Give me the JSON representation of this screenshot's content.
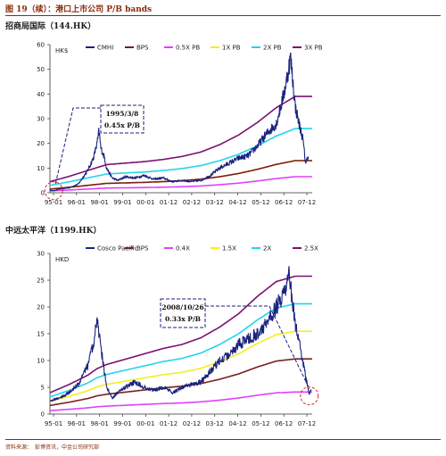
{
  "figure": {
    "title": "图 19（续）：港口上市公司 P/B bands",
    "source": "资料来源：　彭博资讯，中金公司研究部"
  },
  "chart_data": [
    {
      "type": "line",
      "panel_title": "招商局国际（144.HK）",
      "ylabel": "HK$",
      "ylim": [
        0,
        60
      ],
      "yticks": [
        "0",
        "10",
        "20",
        "30",
        "40",
        "50",
        "60"
      ],
      "xticks": [
        "95-01",
        "96-01",
        "98-01",
        "99-01",
        "00-01",
        "01-12",
        "02-12",
        "03-12",
        "04-12",
        "05-12",
        "06-12",
        "07-12"
      ],
      "legend": [
        "CMHI",
        "BPS",
        "0.5X PB",
        "1X PB",
        "2X PB",
        "3X PB"
      ],
      "colors": {
        "price": "#1a237e",
        "bps": "#7b1d1d",
        "pb05": "#e040fb",
        "pb1": "#f5ee1d",
        "pb2": "#22d3ee",
        "pb3": "#7b1170"
      },
      "x": [
        1995.0,
        1996.0,
        1997.0,
        1997.5,
        1998.0,
        1999.0,
        2000.0,
        2001.0,
        2002.0,
        2003.0,
        2004.0,
        2005.0,
        2006.0,
        2007.0,
        2008.0
      ],
      "bps": [
        1.5,
        2.2,
        3.0,
        3.4,
        3.8,
        4.0,
        4.2,
        4.5,
        4.9,
        5.5,
        6.5,
        7.8,
        9.5,
        11.5,
        13.0
      ],
      "price": [
        [
          1995.0,
          1.0
        ],
        [
          1995.2,
          0.8
        ],
        [
          1995.5,
          1.5
        ],
        [
          1996.0,
          2.0
        ],
        [
          1996.5,
          3.5
        ],
        [
          1997.0,
          9.0
        ],
        [
          1997.3,
          14.0
        ],
        [
          1997.5,
          20.0
        ],
        [
          1997.6,
          25.0
        ],
        [
          1997.7,
          18.0
        ],
        [
          1997.9,
          14.0
        ],
        [
          1998.0,
          10.0
        ],
        [
          1998.3,
          6.0
        ],
        [
          1998.6,
          5.0
        ],
        [
          1999.0,
          6.5
        ],
        [
          1999.5,
          6.0
        ],
        [
          2000.0,
          7.0
        ],
        [
          2000.5,
          5.5
        ],
        [
          2001.0,
          6.0
        ],
        [
          2001.5,
          4.5
        ],
        [
          2002.0,
          5.0
        ],
        [
          2002.5,
          4.5
        ],
        [
          2003.0,
          5.0
        ],
        [
          2003.5,
          7.0
        ],
        [
          2004.0,
          10.0
        ],
        [
          2004.5,
          12.0
        ],
        [
          2005.0,
          14.0
        ],
        [
          2005.5,
          15.0
        ],
        [
          2006.0,
          19.0
        ],
        [
          2006.5,
          24.0
        ],
        [
          2007.0,
          28.0
        ],
        [
          2007.4,
          40.0
        ],
        [
          2007.6,
          48.0
        ],
        [
          2007.75,
          55.0
        ],
        [
          2007.85,
          47.0
        ],
        [
          2008.0,
          35.0
        ],
        [
          2008.2,
          28.0
        ],
        [
          2008.4,
          22.0
        ],
        [
          2008.55,
          12.0
        ],
        [
          2008.7,
          15.0
        ]
      ],
      "annotation": {
        "line1": "1995/3/8",
        "line2": "0.45x P/B",
        "at_x": 1995.2,
        "at_y": 0.8
      }
    },
    {
      "type": "line",
      "panel_title": "中远太平洋（1199.HK）",
      "ylabel": "HKD",
      "ylim": [
        0,
        30
      ],
      "yticks": [
        "0",
        "5",
        "10",
        "15",
        "20",
        "25",
        "30"
      ],
      "xticks": [
        "95-01",
        "96-01",
        "98-01",
        "99-01",
        "00-01",
        "01-12",
        "02-12",
        "03-12",
        "04-12",
        "05-12",
        "06-12",
        "07-12"
      ],
      "legend": [
        "Cosco Pacific",
        "BPS",
        "0.4X",
        "1.5X",
        "2X",
        "2.5X"
      ],
      "colors": {
        "price": "#1a237e",
        "bps": "#7b1d1d",
        "pb04": "#e040fb",
        "pb15": "#f5ee1d",
        "pb2": "#22d3ee",
        "pb25": "#7b1170"
      },
      "x": [
        1995.0,
        1996.0,
        1997.0,
        1997.5,
        1998.0,
        1999.0,
        2000.0,
        2001.0,
        2002.0,
        2003.0,
        2004.0,
        2005.0,
        2006.0,
        2007.0,
        2008.0
      ],
      "bps": [
        1.6,
        2.2,
        2.9,
        3.4,
        3.7,
        4.1,
        4.5,
        4.9,
        5.2,
        5.7,
        6.5,
        7.5,
        8.8,
        9.9,
        10.3
      ],
      "price": [
        [
          1995.0,
          2.5
        ],
        [
          1995.5,
          3.0
        ],
        [
          1996.0,
          4.0
        ],
        [
          1996.5,
          5.5
        ],
        [
          1997.0,
          9.0
        ],
        [
          1997.3,
          13.0
        ],
        [
          1997.5,
          18.0
        ],
        [
          1997.6,
          15.0
        ],
        [
          1997.8,
          10.0
        ],
        [
          1998.0,
          5.0
        ],
        [
          1998.3,
          3.0
        ],
        [
          1998.6,
          4.0
        ],
        [
          1999.0,
          5.0
        ],
        [
          1999.5,
          6.0
        ],
        [
          2000.0,
          5.0
        ],
        [
          2000.5,
          4.5
        ],
        [
          2001.0,
          5.0
        ],
        [
          2001.5,
          4.0
        ],
        [
          2002.0,
          5.0
        ],
        [
          2002.5,
          5.5
        ],
        [
          2003.0,
          6.0
        ],
        [
          2003.5,
          8.0
        ],
        [
          2004.0,
          10.0
        ],
        [
          2004.5,
          11.0
        ],
        [
          2005.0,
          13.0
        ],
        [
          2005.5,
          14.0
        ],
        [
          2006.0,
          15.0
        ],
        [
          2006.5,
          17.0
        ],
        [
          2007.0,
          20.0
        ],
        [
          2007.3,
          22.0
        ],
        [
          2007.5,
          23.0
        ],
        [
          2007.7,
          26.0
        ],
        [
          2007.85,
          21.0
        ],
        [
          2008.0,
          17.0
        ],
        [
          2008.3,
          12.0
        ],
        [
          2008.5,
          8.0
        ],
        [
          2008.75,
          3.4
        ],
        [
          2008.85,
          5.0
        ]
      ],
      "annotation": {
        "line1": "2008/10/26",
        "line2": "0.33x P/B",
        "at_x": 2008.75,
        "at_y": 3.4
      }
    }
  ]
}
